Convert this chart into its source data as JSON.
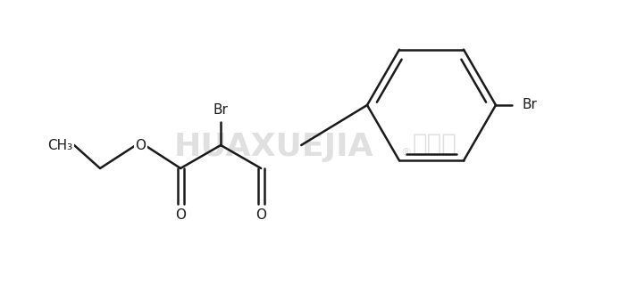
{
  "bg_color": "#ffffff",
  "line_color": "#1a1a1a",
  "text_color": "#1a1a1a",
  "watermark_color": "#e0e0e0",
  "label_Br_top": "Br",
  "label_Br_right": "Br",
  "label_O_ester": "O",
  "label_CH3": "CH₃",
  "line_width": 1.8,
  "fig_width": 7.03,
  "fig_height": 3.2,
  "dpi": 100
}
